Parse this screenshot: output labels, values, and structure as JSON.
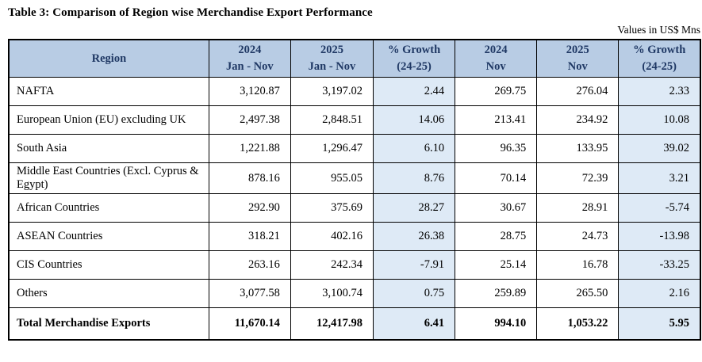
{
  "title": "Table 3: Comparison of Region wise Merchandise Export Performance",
  "units_note": "Values in US$ Mns",
  "colors": {
    "header_bg": "#B8CCE4",
    "header_text": "#1F3864",
    "growth_col_bg": "#DEEAF6",
    "border": "#000000"
  },
  "table": {
    "columns": [
      {
        "key": "region",
        "label_lines": [
          "Region"
        ]
      },
      {
        "key": "jan_nov_2024",
        "label_lines": [
          "2024",
          "Jan - Nov"
        ]
      },
      {
        "key": "jan_nov_2025",
        "label_lines": [
          "2025",
          "Jan - Nov"
        ]
      },
      {
        "key": "growth_jan_nov",
        "label_lines": [
          "% Growth",
          "(24-25)"
        ]
      },
      {
        "key": "nov_2024",
        "label_lines": [
          "2024",
          "Nov"
        ]
      },
      {
        "key": "nov_2025",
        "label_lines": [
          "2025",
          "Nov"
        ]
      },
      {
        "key": "growth_nov",
        "label_lines": [
          "% Growth",
          "(24-25)"
        ]
      }
    ],
    "rows": [
      [
        "NAFTA",
        "3,120.87",
        "3,197.02",
        "2.44",
        "269.75",
        "276.04",
        "2.33"
      ],
      [
        "European Union (EU) excluding UK",
        "2,497.38",
        "2,848.51",
        "14.06",
        "213.41",
        "234.92",
        "10.08"
      ],
      [
        "South Asia",
        "1,221.88",
        "1,296.47",
        "6.10",
        "96.35",
        "133.95",
        "39.02"
      ],
      [
        "Middle East Countries (Excl. Cyprus & Egypt)",
        "878.16",
        "955.05",
        "8.76",
        "70.14",
        "72.39",
        "3.21"
      ],
      [
        "African Countries",
        "292.90",
        "375.69",
        "28.27",
        "30.67",
        "28.91",
        "-5.74"
      ],
      [
        "ASEAN Countries",
        "318.21",
        "402.16",
        "26.38",
        "28.75",
        "24.73",
        "-13.98"
      ],
      [
        "CIS Countries",
        "263.16",
        "242.34",
        "-7.91",
        "25.14",
        "16.78",
        "-33.25"
      ],
      [
        "Others",
        "3,077.58",
        "3,100.74",
        "0.75",
        "259.89",
        "265.50",
        "2.16"
      ]
    ],
    "total_row": [
      "Total Merchandise Exports",
      "11,670.14",
      "12,417.98",
      "6.41",
      "994.10",
      "1,053.22",
      "5.95"
    ]
  }
}
